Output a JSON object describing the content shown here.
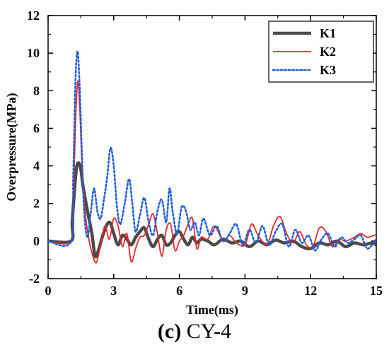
{
  "caption": {
    "panel": "(c)",
    "name": "CY-4"
  },
  "colors": {
    "K1": "#4a4a4a",
    "K2": "#e8262a",
    "K3": "#1f5fd6"
  },
  "chart_data": {
    "type": "line",
    "title": "",
    "xlabel": "Time(ms)",
    "ylabel": "Overpressure(MPa)",
    "xlim": [
      0,
      15
    ],
    "ylim": [
      -2,
      12
    ],
    "xticks": [
      "0",
      "3",
      "6",
      "9",
      "12",
      "15"
    ],
    "yticks": [
      "-2",
      "0",
      "2",
      "4",
      "6",
      "8",
      "10",
      "12"
    ],
    "grid": false,
    "legend_position": "top-right",
    "series": [
      {
        "name": "K1",
        "style": "solid-thick",
        "x": [
          0,
          1.05,
          1.1,
          1.2,
          1.3,
          1.4,
          1.5,
          1.6,
          1.8,
          2.0,
          2.15,
          2.3,
          2.5,
          2.7,
          2.85,
          3.0,
          3.2,
          3.4,
          3.6,
          3.8,
          4.0,
          4.2,
          4.4,
          4.6,
          4.8,
          5.0,
          5.2,
          5.4,
          5.6,
          5.8,
          6.0,
          6.2,
          6.4,
          6.6,
          6.8,
          7.0,
          7.3,
          7.6,
          8.0,
          8.4,
          8.8,
          9.2,
          9.6,
          10.0,
          10.4,
          10.8,
          11.2,
          11.6,
          12.0,
          12.4,
          12.8,
          13.2,
          13.6,
          14.0,
          14.4,
          14.8,
          15.0
        ],
        "y": [
          0,
          0,
          1.0,
          2.6,
          3.9,
          4.15,
          3.8,
          2.9,
          1.6,
          0.4,
          -0.8,
          -0.5,
          0.3,
          0.9,
          0.95,
          0.4,
          -0.2,
          0.3,
          0.1,
          -0.2,
          0.2,
          0.5,
          0.7,
          0.1,
          -0.3,
          0.1,
          0.3,
          -0.2,
          -0.1,
          0.3,
          0.5,
          0.1,
          -0.2,
          0.2,
          -0.1,
          0.1,
          0.0,
          -0.2,
          0.1,
          -0.1,
          0.0,
          -0.3,
          0.0,
          -0.2,
          0.05,
          -0.1,
          0.0,
          -0.3,
          -0.4,
          -0.1,
          -0.2,
          0.0,
          -0.3,
          -0.1,
          -0.2,
          -0.1,
          -0.2
        ]
      },
      {
        "name": "K2",
        "style": "solid-thin",
        "x": [
          0,
          1.05,
          1.15,
          1.25,
          1.35,
          1.45,
          1.55,
          1.7,
          1.85,
          2.0,
          2.2,
          2.4,
          2.6,
          2.8,
          3.0,
          3.2,
          3.4,
          3.6,
          3.8,
          4.0,
          4.2,
          4.4,
          4.6,
          4.8,
          5.0,
          5.2,
          5.4,
          5.6,
          5.8,
          6.0,
          6.2,
          6.4,
          6.6,
          6.8,
          7.0,
          7.3,
          7.6,
          8.0,
          8.3,
          8.6,
          9.0,
          9.3,
          9.6,
          10.0,
          10.3,
          10.6,
          10.9,
          11.2,
          11.5,
          11.8,
          12.1,
          12.4,
          12.7,
          13.0,
          13.3,
          13.6,
          14.0,
          14.3,
          14.6,
          15.0
        ],
        "y": [
          0,
          0,
          2.0,
          6.2,
          8.5,
          7.0,
          4.0,
          1.5,
          0.2,
          -0.6,
          -1.15,
          -0.2,
          0.8,
          0.1,
          1.2,
          0.8,
          -0.3,
          0.4,
          -1.1,
          -0.4,
          0.2,
          0.3,
          0.9,
          1.45,
          0.4,
          -0.8,
          0.6,
          0.9,
          -0.5,
          0.0,
          0.3,
          0.9,
          1.2,
          -0.4,
          0.2,
          0.1,
          0.8,
          0.0,
          0.3,
          -0.1,
          -0.2,
          0.9,
          0.3,
          -0.2,
          0.8,
          1.3,
          0.4,
          -0.1,
          0.5,
          -0.2,
          -0.3,
          0.7,
          0.5,
          -0.3,
          0.1,
          0.0,
          0.2,
          0.4,
          0.2,
          0.35
        ]
      },
      {
        "name": "K3",
        "style": "dotted",
        "x": [
          0,
          1.05,
          1.15,
          1.25,
          1.35,
          1.45,
          1.55,
          1.65,
          1.8,
          1.95,
          2.1,
          2.25,
          2.4,
          2.55,
          2.7,
          2.85,
          3.0,
          3.15,
          3.3,
          3.5,
          3.7,
          3.85,
          4.0,
          4.2,
          4.4,
          4.6,
          4.8,
          5.0,
          5.2,
          5.4,
          5.55,
          5.7,
          5.9,
          6.1,
          6.3,
          6.5,
          6.7,
          6.9,
          7.1,
          7.4,
          7.7,
          8.0,
          8.3,
          8.6,
          8.9,
          9.2,
          9.5,
          9.8,
          10.1,
          10.4,
          10.7,
          11.0,
          11.3,
          11.6,
          11.9,
          12.2,
          12.5,
          12.8,
          13.1,
          13.4,
          13.7,
          14.0,
          14.3,
          14.6,
          15.0
        ],
        "y": [
          0,
          0,
          3.5,
          8.5,
          10.1,
          8.0,
          4.5,
          1.5,
          0.2,
          1.5,
          2.8,
          1.6,
          1.2,
          2.2,
          3.4,
          4.95,
          4.0,
          1.8,
          0.9,
          2.0,
          3.3,
          2.0,
          0.5,
          1.4,
          2.3,
          1.0,
          0.3,
          1.6,
          2.2,
          1.0,
          2.8,
          1.5,
          0.4,
          1.8,
          1.6,
          0.6,
          1.0,
          0.3,
          1.2,
          0.3,
          0.8,
          0.0,
          0.4,
          0.9,
          -0.2,
          0.6,
          -0.1,
          0.8,
          -0.2,
          0.5,
          0.9,
          -0.3,
          0.6,
          -0.1,
          0.3,
          -0.5,
          0.1,
          0.4,
          -0.3,
          0.2,
          -0.1,
          0.1,
          0.3,
          -0.4,
          0.1
        ]
      }
    ]
  }
}
